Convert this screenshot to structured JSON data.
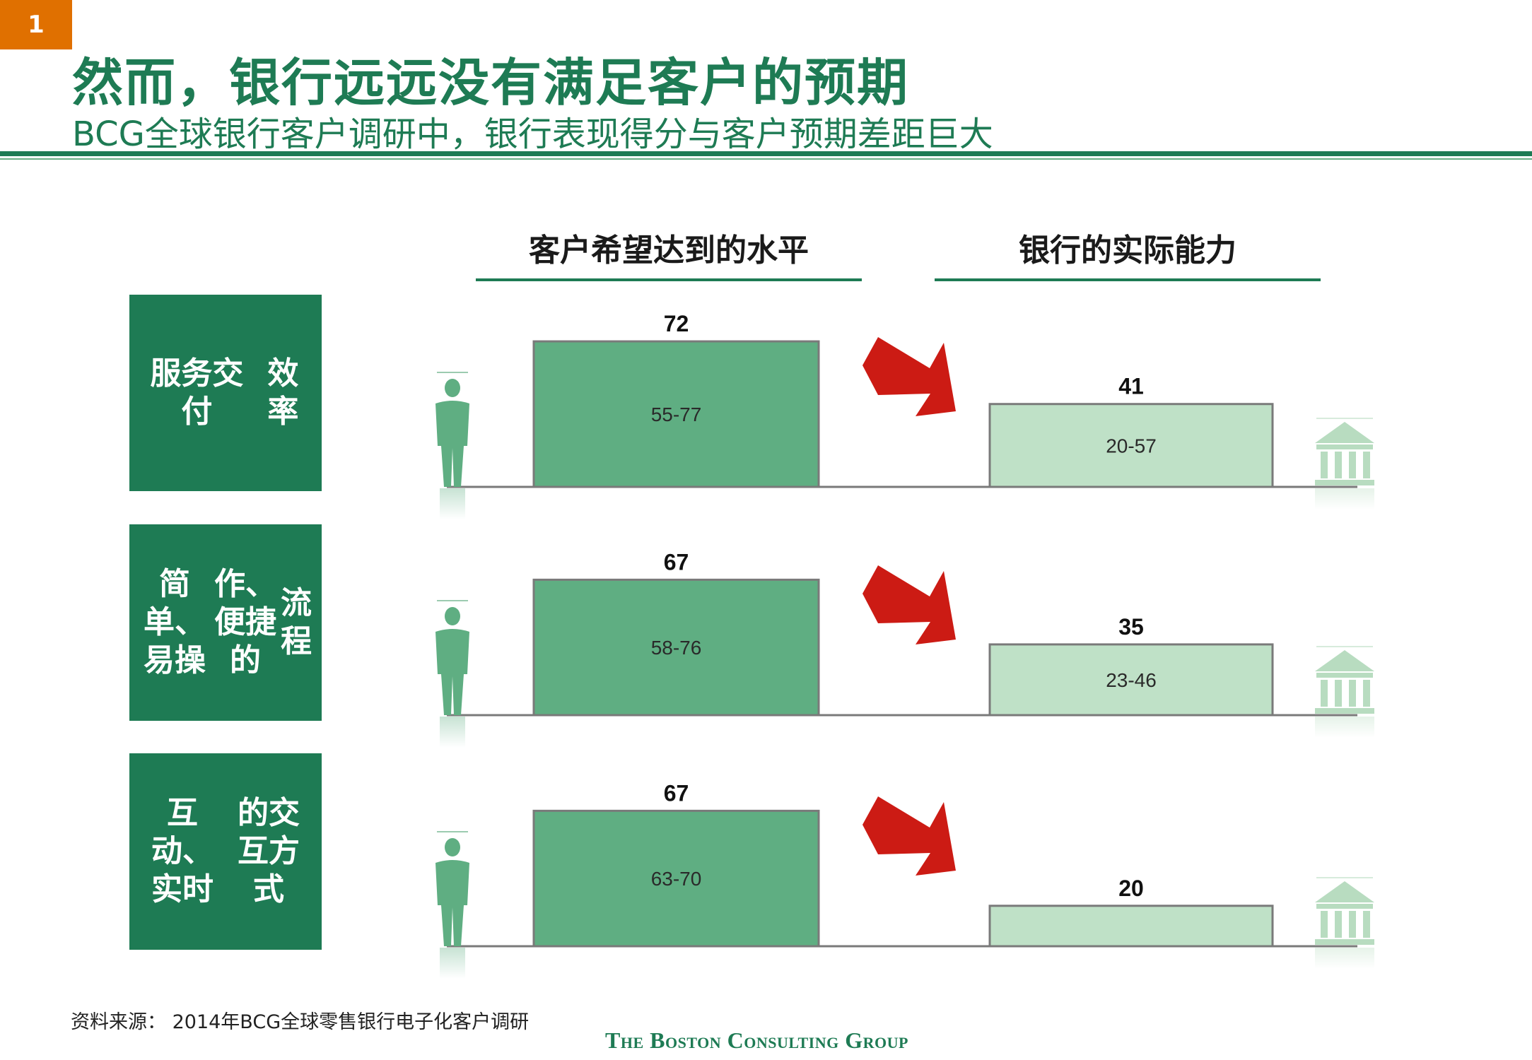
{
  "page": {
    "number": "1"
  },
  "header": {
    "title": "然而，银行远远没有满足客户的预期",
    "subtitle": "BCG全球银行客户调研中，银行表现得分与客户预期差距巨大"
  },
  "columns": {
    "expected": "客户希望达到的水平",
    "actual": "银行的实际能力"
  },
  "footer": {
    "source": "资料来源：  2014年BCG全球零售银行电子化客户调研",
    "logo": "The Boston Consulting Group"
  },
  "colors": {
    "brand_green": "#1e7b54",
    "expected_bar": "#5fae82",
    "actual_bar": "#bfe1c7",
    "arrow_red": "#cc1b14",
    "icon_green": "#5fae82",
    "bank_icon": "#b8dcc0"
  },
  "icons": [
    "person-icon",
    "red-arrow-icon",
    "bank-icon"
  ],
  "chart_data": {
    "type": "bar",
    "categories": [
      [
        "服务交付",
        "效率"
      ],
      [
        "简单、易操",
        "作、便捷的",
        "流程"
      ],
      [
        "互动、实时",
        "的交互方式"
      ]
    ],
    "series": [
      {
        "name": "客户希望达到的水平",
        "values": [
          72,
          67,
          67
        ],
        "ranges": [
          "55-77",
          "58-76",
          "63-70"
        ]
      },
      {
        "name": "银行的实际能力",
        "values": [
          41,
          35,
          20
        ],
        "ranges": [
          "20-57",
          "23-46",
          ""
        ]
      }
    ],
    "ylim": [
      0,
      100
    ],
    "legend": "top"
  }
}
